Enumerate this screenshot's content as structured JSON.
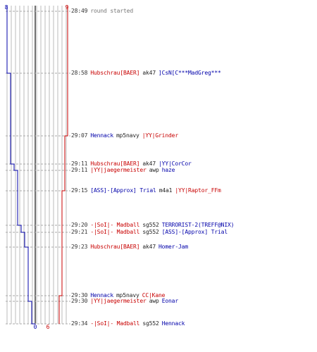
{
  "colors": {
    "red": "#c80000",
    "blue": "#0000aa",
    "text": "#222222",
    "time": "#333333",
    "grid": "#bbbbbb",
    "dash": "#aaaaaa"
  },
  "scores": {
    "blue_start": "8",
    "red_start": "9",
    "blue_end": "0",
    "red_end": "6"
  },
  "events": [
    {
      "time": "28:49",
      "message": "round started"
    },
    {
      "time": "28:58",
      "killer": "Hubschrau[BAER]",
      "killer_team": "red",
      "weapon": "ak47",
      "victim": "]CsN[C***MadGreg***",
      "victim_team": "blue"
    },
    {
      "time": "29:07",
      "killer": "Hennack",
      "killer_team": "blue",
      "weapon": "mp5navy",
      "victim": "|YY|Grinder",
      "victim_team": "red"
    },
    {
      "time": "29:11",
      "killer": "Hubschrau[BAER]",
      "killer_team": "red",
      "weapon": "ak47",
      "victim": "|YY|CorCor",
      "victim_team": "blue"
    },
    {
      "time": "29:11",
      "killer": "|YY|jaegermeister",
      "killer_team": "red",
      "weapon": "awp",
      "victim": "haze",
      "victim_team": "blue"
    },
    {
      "time": "29:15",
      "killer": "[ASS]-[Approx] Trial",
      "killer_team": "blue",
      "weapon": "m4a1",
      "victim": "|YY|Raptor_FFm",
      "victim_team": "red"
    },
    {
      "time": "29:20",
      "killer": "-|SoI|- Madball",
      "killer_team": "red",
      "weapon": "sg552",
      "victim": "TERRORIST-2(TREFF@NIX)",
      "victim_team": "blue"
    },
    {
      "time": "29:21",
      "killer": "-|SoI|- Madball",
      "killer_team": "red",
      "weapon": "sg552",
      "victim": "[ASS]-[Approx] Trial",
      "victim_team": "blue"
    },
    {
      "time": "29:23",
      "killer": "Hubschrau[BAER]",
      "killer_team": "red",
      "weapon": "ak47",
      "victim": "Homer-Jam",
      "victim_team": "blue"
    },
    {
      "time": "29:30",
      "killer": "Hennack",
      "killer_team": "blue",
      "weapon": "mp5navy",
      "victim": "CC|Kane",
      "victim_team": "red"
    },
    {
      "time": "29:30",
      "killer": "|YY|jaegermeister",
      "killer_team": "red",
      "weapon": "awp",
      "victim": "Eonar",
      "victim_team": "blue"
    },
    {
      "time": "29:34",
      "killer": "-|SoI|- Madball",
      "killer_team": "red",
      "weapon": "sg552",
      "victim": "Hennack",
      "victim_team": "blue"
    }
  ]
}
